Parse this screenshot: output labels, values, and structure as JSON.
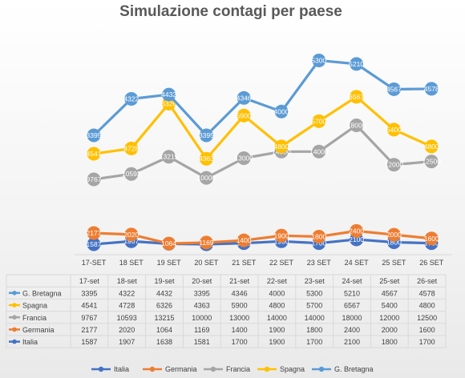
{
  "chart_data": {
    "type": "line",
    "title": "Simulazione contagi per paese",
    "categories": [
      "17-SET",
      "18 SET",
      "19 SET",
      "20 SET",
      "21 SET",
      "22 SET",
      "23 SET",
      "24 SET",
      "25 SET",
      "26 SET"
    ],
    "table_headers": [
      "17-set",
      "18-set",
      "19-set",
      "20-set",
      "21-set",
      "22-set",
      "23-set",
      "24-set",
      "25-set",
      "26-set"
    ],
    "series": [
      {
        "name": "Italia",
        "color": "#4472c4",
        "values": [
          1587,
          1907,
          1638,
          1581,
          1700,
          1900,
          1700,
          2100,
          1800,
          1700
        ]
      },
      {
        "name": "Germania",
        "color": "#ed7d31",
        "values": [
          2177,
          2020,
          1064,
          1169,
          1400,
          1900,
          1800,
          2400,
          2000,
          1600
        ]
      },
      {
        "name": "Francia",
        "color": "#a5a5a5",
        "values": [
          9767,
          10593,
          13215,
          10000,
          13000,
          14000,
          14000,
          18000,
          12000,
          12500
        ]
      },
      {
        "name": "Spagna",
        "color": "#ffc000",
        "values": [
          4541,
          4728,
          6326,
          4363,
          5900,
          4800,
          5700,
          6567,
          5400,
          4800
        ]
      },
      {
        "name": "G. Bretagna",
        "color": "#5b9bd5",
        "values": [
          3395,
          4322,
          4432,
          3395,
          4346,
          4000,
          5300,
          5210,
          4567,
          4578
        ]
      }
    ],
    "table_order": [
      "G. Bretagna",
      "Spagna",
      "Francia",
      "Germania",
      "Italia"
    ],
    "legend_order": [
      "Italia",
      "Germania",
      "Francia",
      "Spagna",
      "G. Bretagna"
    ],
    "legend_position": "bottom",
    "data_labels": true,
    "data_table": true,
    "grid": false
  }
}
